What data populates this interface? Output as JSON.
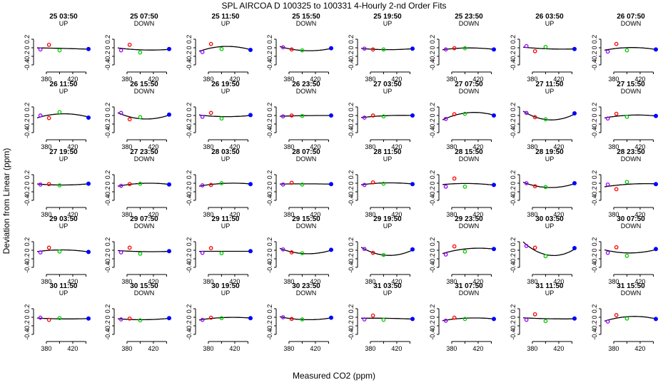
{
  "title": "SPL   AIRCOA D   100325 to 100331   4-Hourly 2-nd Order Fits",
  "chart_data": {
    "type": "scatter",
    "xlabel": "Measured CO2 (ppm)",
    "ylabel": "Deviation from Linear (ppm)",
    "xlim": [
      366,
      446
    ],
    "ylim": [
      -0.5,
      0.5
    ],
    "xticks": [
      380,
      420
    ],
    "yticks": [
      -0.4,
      -0.2,
      0.0,
      0.2
    ],
    "yticklabels": [
      "-0.4",
      "-0.2",
      "0",
      "0.2"
    ],
    "point_x": [
      371,
      384,
      400,
      446
    ],
    "point_colors": [
      "#9900ff",
      "#ff0000",
      "#00cc00",
      "#0000ff"
    ],
    "grid": false,
    "panels": [
      {
        "title": "25 03:50",
        "mode": "UP",
        "y": [
          -0.04,
          0.07,
          -0.06,
          -0.03
        ]
      },
      {
        "title": "25 07:50",
        "mode": "DOWN",
        "y": [
          -0.06,
          0.07,
          -0.11,
          -0.03
        ]
      },
      {
        "title": "25 11:50",
        "mode": "UP",
        "y": [
          -0.1,
          0.09,
          -0.03,
          -0.05
        ]
      },
      {
        "title": "25 15:50",
        "mode": "DOWN",
        "y": [
          0.01,
          -0.04,
          -0.06,
          -0.01
        ]
      },
      {
        "title": "25 19:50",
        "mode": "UP",
        "y": [
          -0.02,
          -0.04,
          -0.04,
          -0.02
        ]
      },
      {
        "title": "25 23:50",
        "mode": "DOWN",
        "y": [
          -0.04,
          -0.01,
          -0.01,
          -0.04
        ]
      },
      {
        "title": "26 03:50",
        "mode": "UP",
        "y": [
          0.04,
          -0.08,
          0.02,
          -0.03
        ]
      },
      {
        "title": "26 07:50",
        "mode": "DOWN",
        "y": [
          -0.09,
          0.09,
          -0.06,
          -0.04
        ]
      },
      {
        "title": "26 11:50",
        "mode": "UP",
        "y": [
          0.0,
          -0.06,
          0.08,
          -0.05
        ]
      },
      {
        "title": "26 15:50",
        "mode": "DOWN",
        "y": [
          0.06,
          -0.09,
          -0.04,
          0.02
        ]
      },
      {
        "title": "26 19:50",
        "mode": "UP",
        "y": [
          -0.03,
          0.06,
          -0.07,
          0.01
        ]
      },
      {
        "title": "26 23:50",
        "mode": "DOWN",
        "y": [
          -0.02,
          0.0,
          -0.01,
          0.0
        ]
      },
      {
        "title": "27 03:50",
        "mode": "UP",
        "y": [
          -0.05,
          0.0,
          -0.02,
          0.0
        ]
      },
      {
        "title": "27 07:50",
        "mode": "DOWN",
        "y": [
          -0.08,
          0.03,
          0.04,
          0.0
        ]
      },
      {
        "title": "27 11:50",
        "mode": "UP",
        "y": [
          0.06,
          -0.04,
          -0.09,
          0.05
        ]
      },
      {
        "title": "27 15:50",
        "mode": "DOWN",
        "y": [
          -0.07,
          0.04,
          -0.03,
          -0.01
        ]
      },
      {
        "title": "27 19:50",
        "mode": "UP",
        "y": [
          -0.03,
          -0.02,
          -0.05,
          -0.01
        ]
      },
      {
        "title": "27 23:50",
        "mode": "DOWN",
        "y": [
          -0.06,
          -0.02,
          -0.01,
          -0.03
        ]
      },
      {
        "title": "28 03:50",
        "mode": "UP",
        "y": [
          -0.05,
          -0.04,
          0.0,
          -0.02
        ]
      },
      {
        "title": "28 07:50",
        "mode": "DOWN",
        "y": [
          -0.03,
          0.01,
          -0.03,
          -0.02
        ]
      },
      {
        "title": "28 11:50",
        "mode": "UP",
        "y": [
          -0.04,
          0.02,
          -0.01,
          -0.02
        ]
      },
      {
        "title": "28 15:50",
        "mode": "DOWN",
        "y": [
          -0.08,
          0.11,
          -0.08,
          -0.04
        ]
      },
      {
        "title": "28 19:50",
        "mode": "UP",
        "y": [
          0.0,
          -0.07,
          -0.09,
          0.0
        ]
      },
      {
        "title": "28 23:50",
        "mode": "DOWN",
        "y": [
          -0.03,
          -0.14,
          0.03,
          -0.02
        ]
      },
      {
        "title": "29 03:50",
        "mode": "UP",
        "y": [
          -0.05,
          0.06,
          -0.03,
          -0.04
        ]
      },
      {
        "title": "29 07:50",
        "mode": "DOWN",
        "y": [
          -0.05,
          0.06,
          -0.08,
          -0.02
        ]
      },
      {
        "title": "29 11:50",
        "mode": "UP",
        "y": [
          -0.06,
          0.05,
          -0.07,
          -0.02
        ]
      },
      {
        "title": "29 15:50",
        "mode": "DOWN",
        "y": [
          0.02,
          -0.05,
          -0.07,
          0.01
        ]
      },
      {
        "title": "29 19:50",
        "mode": "UP",
        "y": [
          0.03,
          -0.06,
          -0.11,
          0.02
        ]
      },
      {
        "title": "29 23:50",
        "mode": "DOWN",
        "y": [
          -0.1,
          0.09,
          -0.03,
          0.03
        ]
      },
      {
        "title": "30 03:50",
        "mode": "UP",
        "y": [
          0.1,
          0.06,
          -0.14,
          0.05
        ]
      },
      {
        "title": "30 07:50",
        "mode": "DOWN",
        "y": [
          -0.06,
          0.07,
          -0.13,
          0.03
        ]
      },
      {
        "title": "30 11:50",
        "mode": "UP",
        "y": [
          -0.01,
          -0.06,
          -0.02,
          -0.03
        ]
      },
      {
        "title": "30 15:50",
        "mode": "DOWN",
        "y": [
          -0.05,
          -0.03,
          -0.07,
          -0.02
        ]
      },
      {
        "title": "30 19:50",
        "mode": "UP",
        "y": [
          -0.06,
          -0.01,
          -0.02,
          -0.02
        ]
      },
      {
        "title": "30 23:50",
        "mode": "DOWN",
        "y": [
          0.0,
          -0.04,
          -0.05,
          -0.01
        ]
      },
      {
        "title": "31 03:50",
        "mode": "UP",
        "y": [
          -0.05,
          0.04,
          -0.06,
          -0.04
        ]
      },
      {
        "title": "31 07:50",
        "mode": "DOWN",
        "y": [
          -0.08,
          -0.01,
          -0.04,
          -0.04
        ]
      },
      {
        "title": "31 11:50",
        "mode": "UP",
        "y": [
          -0.06,
          0.07,
          -0.09,
          -0.03
        ]
      },
      {
        "title": "31 15:50",
        "mode": "DOWN",
        "y": [
          -0.1,
          0.05,
          -0.03,
          -0.04
        ]
      }
    ]
  }
}
